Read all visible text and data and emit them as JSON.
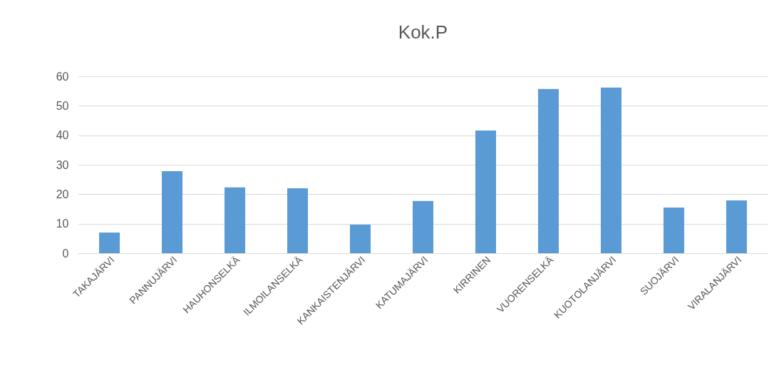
{
  "chart_data": {
    "type": "bar",
    "title": "Kok.P",
    "categories": [
      "TAKAJÄRVI",
      "PANNUJÄRVI",
      "HAUHONSELKÄ",
      "ILMOILANSELKÄ",
      "KANKAISTENJÄRVI",
      "KATUMAJÄRVI",
      "KIRRINEN",
      "VUORENSELKÄ",
      "KUOTOLANJÄRVI",
      "SUOJÄRVI",
      "VIRALANJÄRVI"
    ],
    "values": [
      7.0,
      27.8,
      22.3,
      22.0,
      9.7,
      17.7,
      41.6,
      55.7,
      56.2,
      15.5,
      17.9
    ],
    "color": "#5b9bd5",
    "ylim": [
      0,
      60
    ],
    "yticks": [
      0,
      10,
      20,
      30,
      40,
      50,
      60
    ],
    "grid": "y"
  }
}
